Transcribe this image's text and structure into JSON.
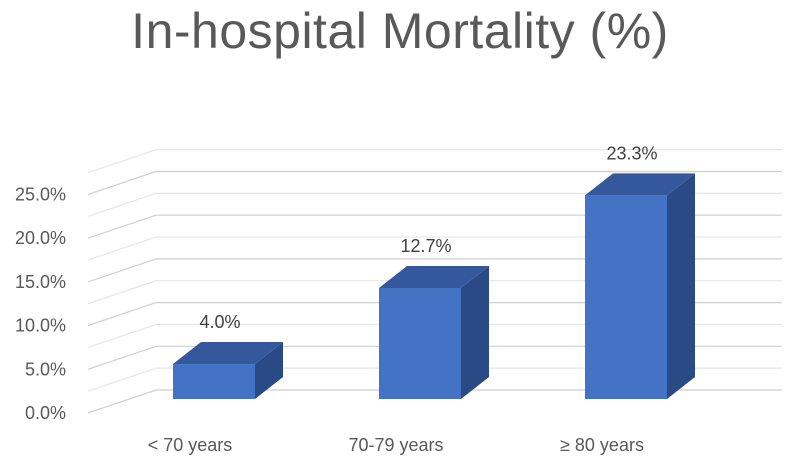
{
  "chart_data": {
    "type": "bar",
    "title": "In-hospital Mortality (%)",
    "categories": [
      "< 70 years",
      "70-79 years",
      "≥ 80 years"
    ],
    "values": [
      4.0,
      12.7,
      23.3
    ],
    "data_labels": [
      "4.0%",
      "12.7%",
      "23.3%"
    ],
    "y_ticks": [
      "0.0%",
      "5.0%",
      "10.0%",
      "15.0%",
      "20.0%",
      "25.0%"
    ],
    "ylim": [
      0,
      25
    ],
    "grid": true,
    "style": "3d-column",
    "colors": {
      "bar_front": "#4472C4",
      "bar_top": "#34589B",
      "bar_side": "#2A4A86",
      "grid": "#d9d9d9",
      "text": "#595959"
    }
  }
}
